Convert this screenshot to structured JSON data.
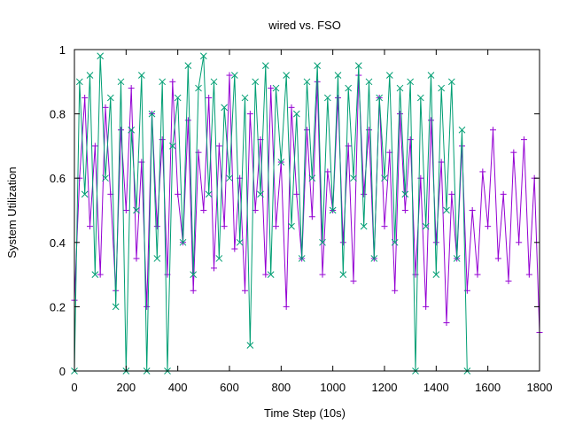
{
  "chart_data": {
    "type": "line",
    "title": "wired vs. FSO",
    "xlabel": "Time Step (10s)",
    "ylabel": "System Utilization",
    "xlim": [
      0,
      1800
    ],
    "ylim": [
      0,
      1
    ],
    "xticks": [
      "0",
      "200",
      "400",
      "600",
      "800",
      "1000",
      "1200",
      "1400",
      "1600",
      "1800"
    ],
    "yticks": [
      "0",
      "0.2",
      "0.4",
      "0.6",
      "0.8",
      "1"
    ],
    "grid": false,
    "legend": "none",
    "series": [
      {
        "color": "#9400d3",
        "marker": "plus",
        "x": [
          0,
          20,
          40,
          60,
          80,
          100,
          120,
          140,
          160,
          180,
          200,
          220,
          240,
          260,
          280,
          300,
          320,
          340,
          360,
          380,
          400,
          420,
          440,
          460,
          480,
          500,
          520,
          540,
          560,
          580,
          600,
          620,
          640,
          660,
          680,
          700,
          720,
          740,
          760,
          780,
          800,
          820,
          840,
          860,
          880,
          900,
          920,
          940,
          960,
          980,
          1000,
          1020,
          1040,
          1060,
          1080,
          1100,
          1120,
          1140,
          1160,
          1180,
          1200,
          1220,
          1240,
          1260,
          1280,
          1300,
          1320,
          1340,
          1360,
          1380,
          1400,
          1420,
          1440,
          1460,
          1480,
          1500,
          1520,
          1540,
          1560,
          1580,
          1600,
          1620,
          1640,
          1660,
          1680,
          1700,
          1720,
          1740,
          1760,
          1780,
          1800
        ],
        "values": [
          0.22,
          0.6,
          0.85,
          0.45,
          0.7,
          0.3,
          0.82,
          0.55,
          0.25,
          0.75,
          0.5,
          0.88,
          0.35,
          0.65,
          0.2,
          0.8,
          0.45,
          0.72,
          0.3,
          0.9,
          0.55,
          0.4,
          0.78,
          0.25,
          0.68,
          0.5,
          0.85,
          0.32,
          0.7,
          0.45,
          0.92,
          0.38,
          0.6,
          0.25,
          0.8,
          0.5,
          0.72,
          0.3,
          0.88,
          0.45,
          0.65,
          0.2,
          0.82,
          0.55,
          0.35,
          0.75,
          0.48,
          0.9,
          0.3,
          0.62,
          0.5,
          0.85,
          0.4,
          0.7,
          0.28,
          0.92,
          0.55,
          0.75,
          0.35,
          0.85,
          0.45,
          0.68,
          0.25,
          0.8,
          0.5,
          0.72,
          0.3,
          0.6,
          0.2,
          0.78,
          0.4,
          0.65,
          0.15,
          0.55,
          0.35,
          0.7,
          0.25,
          0.5,
          0.3,
          0.62,
          0.45,
          0.75,
          0.35,
          0.55,
          0.28,
          0.68,
          0.4,
          0.72,
          0.3,
          0.6,
          0.12
        ]
      },
      {
        "color": "#009e73",
        "marker": "x",
        "x": [
          0,
          20,
          40,
          60,
          80,
          100,
          120,
          140,
          160,
          180,
          200,
          220,
          240,
          260,
          280,
          300,
          320,
          340,
          360,
          380,
          400,
          420,
          440,
          460,
          480,
          500,
          520,
          540,
          560,
          580,
          600,
          620,
          640,
          660,
          680,
          700,
          720,
          740,
          760,
          780,
          800,
          820,
          840,
          860,
          880,
          900,
          920,
          940,
          960,
          980,
          1000,
          1020,
          1040,
          1060,
          1080,
          1100,
          1120,
          1140,
          1160,
          1180,
          1200,
          1220,
          1240,
          1260,
          1280,
          1300,
          1320,
          1340,
          1360,
          1380,
          1400,
          1420,
          1440,
          1460,
          1480,
          1500,
          1520
        ],
        "values": [
          0.0,
          0.9,
          0.55,
          0.92,
          0.3,
          0.98,
          0.6,
          0.85,
          0.2,
          0.9,
          0.0,
          0.75,
          0.5,
          0.92,
          0.0,
          0.8,
          0.35,
          0.9,
          0.0,
          0.7,
          0.85,
          0.4,
          0.95,
          0.3,
          0.88,
          0.98,
          0.55,
          0.9,
          0.35,
          0.82,
          0.6,
          0.92,
          0.4,
          0.85,
          0.08,
          0.9,
          0.55,
          0.95,
          0.3,
          0.88,
          0.65,
          0.92,
          0.45,
          0.8,
          0.35,
          0.9,
          0.6,
          0.95,
          0.4,
          0.85,
          0.5,
          0.92,
          0.3,
          0.88,
          0.6,
          0.95,
          0.45,
          0.9,
          0.35,
          0.85,
          0.6,
          0.92,
          0.4,
          0.88,
          0.55,
          0.9,
          0.0,
          0.85,
          0.45,
          0.92,
          0.3,
          0.88,
          0.5,
          0.9,
          0.35,
          0.75,
          0.0
        ]
      }
    ]
  }
}
